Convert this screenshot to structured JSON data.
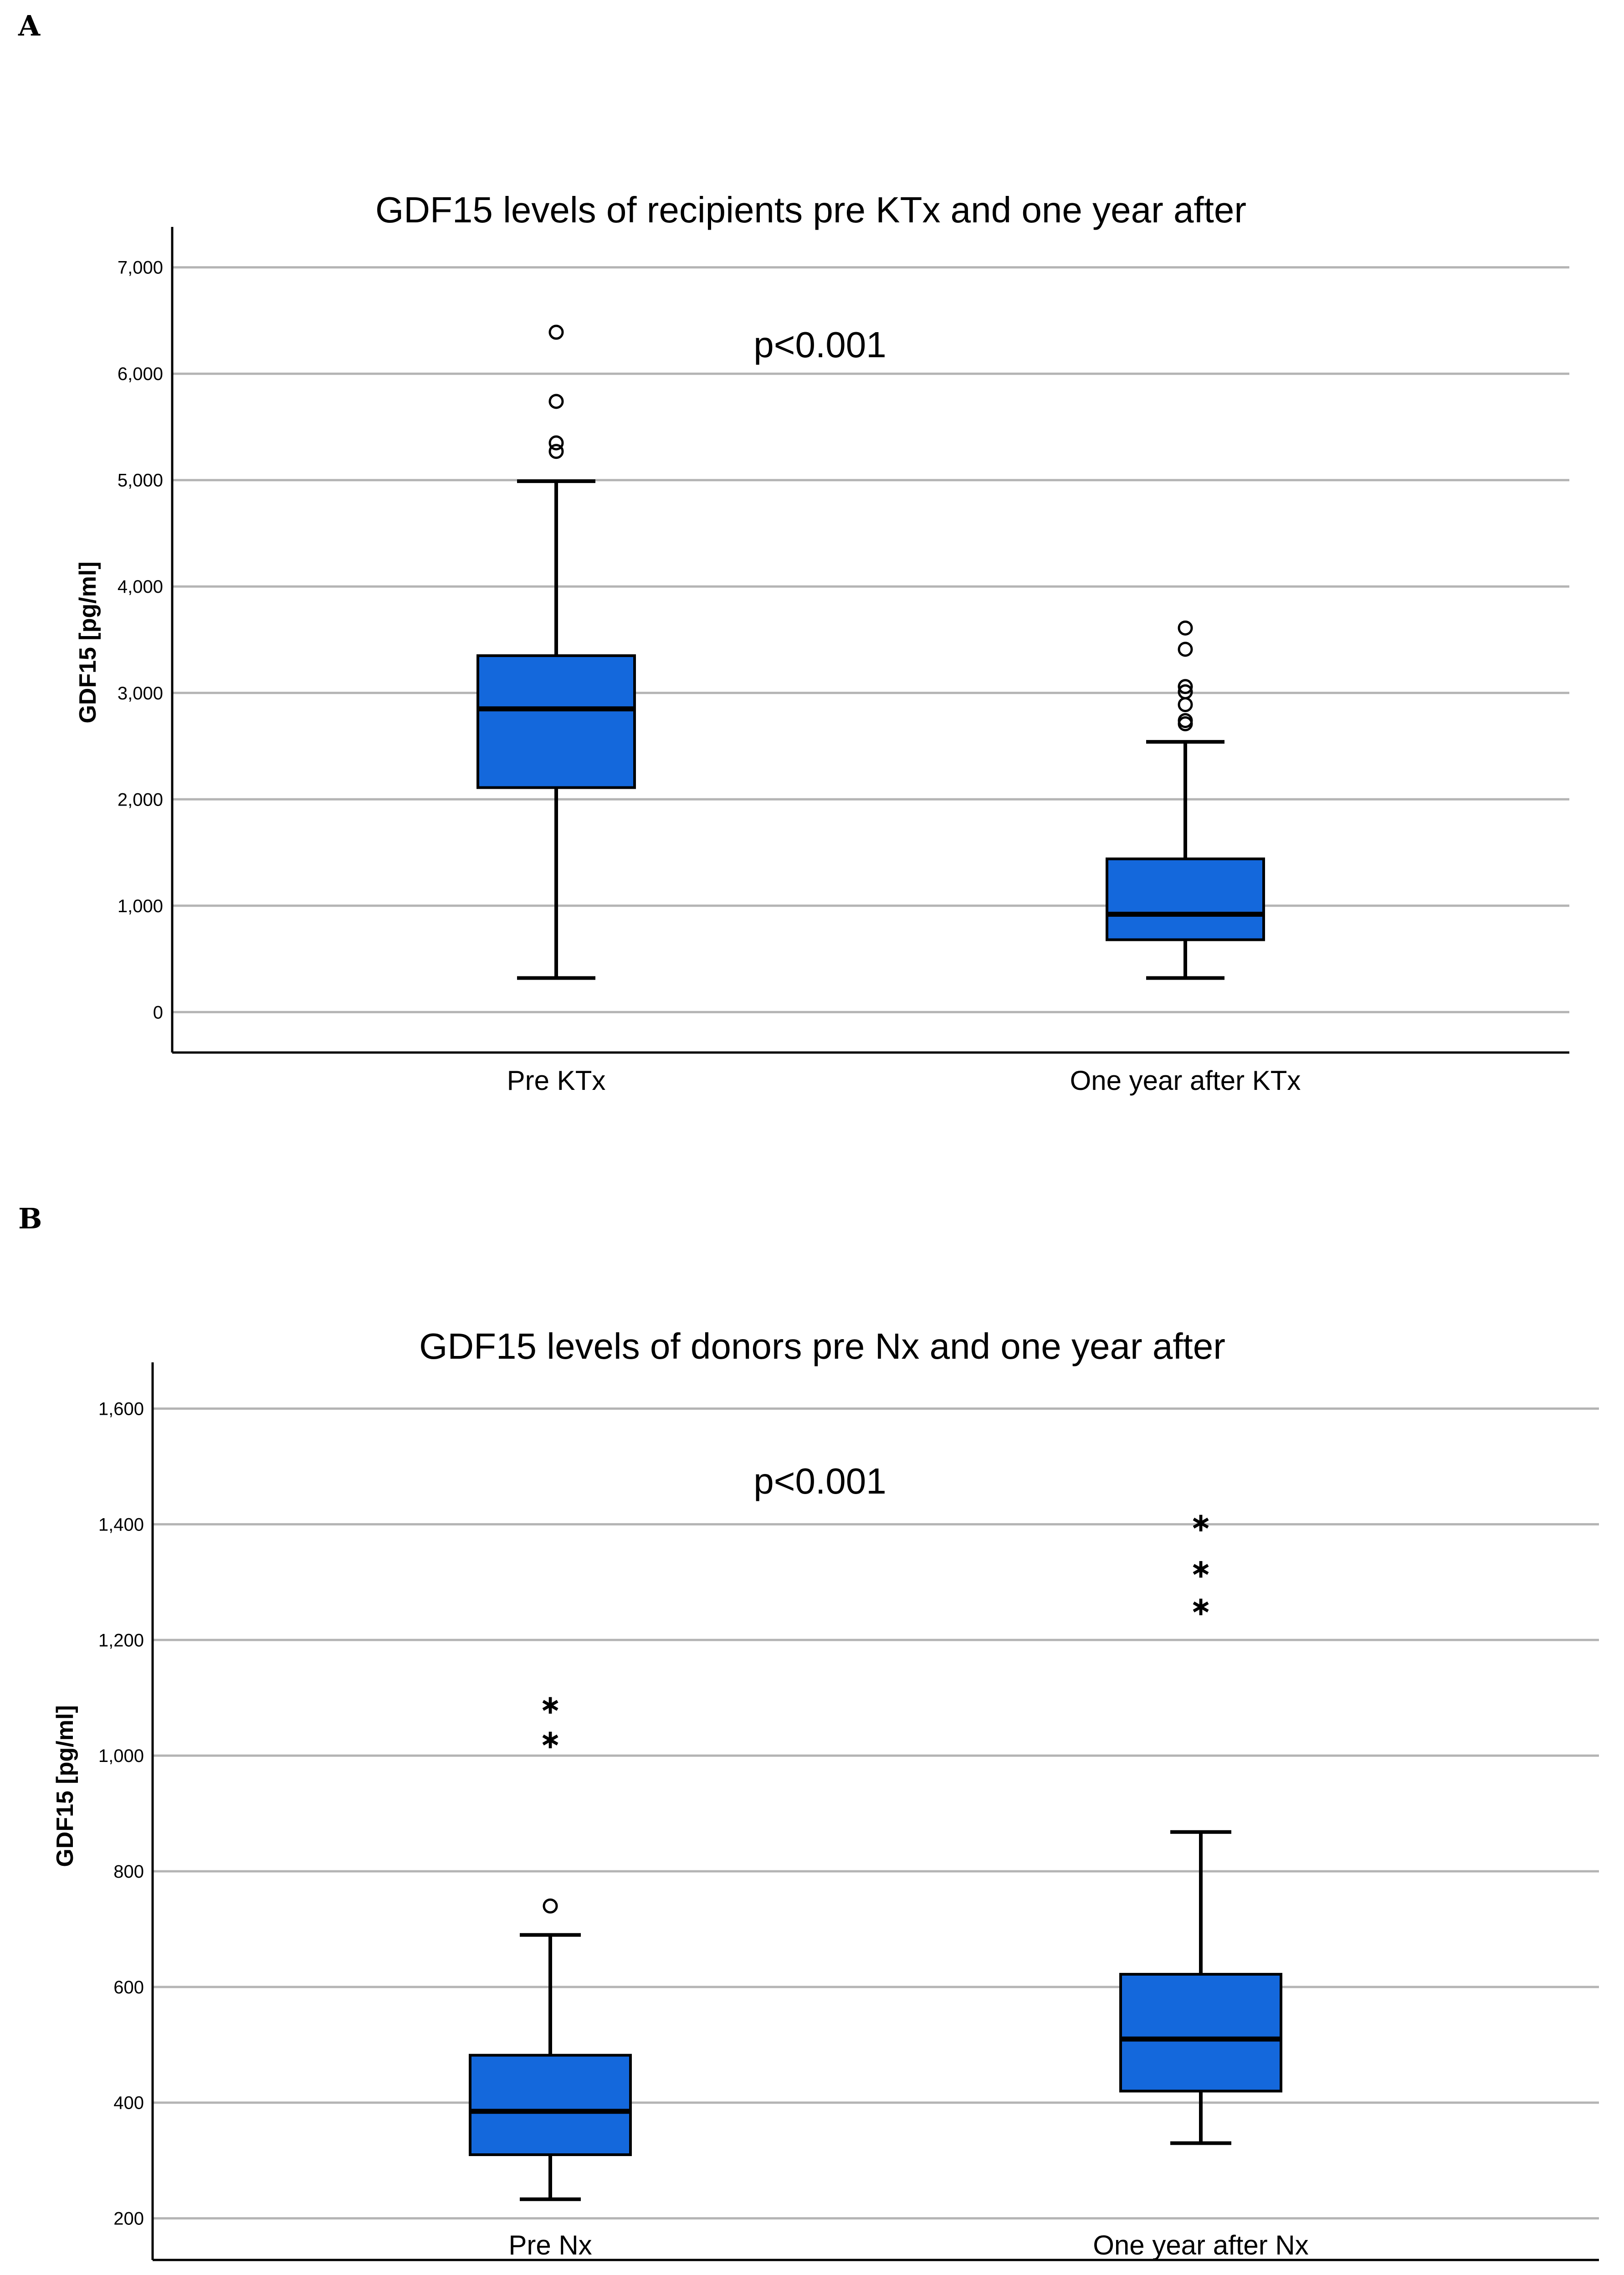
{
  "panel_labels": [
    "A",
    "B"
  ],
  "colors": {
    "box_fill": "#1468DC",
    "stroke": "#000000",
    "grid": "#B4B4B4",
    "background": "#FFFFFF"
  },
  "chart_data": [
    {
      "type": "box",
      "panel": "A",
      "title": "GDF15 levels of recipients pre KTx and one year after",
      "annotation": "p<0.001",
      "xlabel": "",
      "ylabel": "GDF15 [pg/ml]",
      "ylim": [
        -380,
        7380
      ],
      "yticks": [
        0,
        1000,
        2000,
        3000,
        4000,
        5000,
        6000,
        7000
      ],
      "ytick_labels": [
        "0",
        "1,000",
        "2,000",
        "3,000",
        "4,000",
        "5,000",
        "6,000",
        "7,000"
      ],
      "grid": true,
      "categories": [
        "Pre KTx",
        "One year after KTx"
      ],
      "boxes": [
        {
          "category": "Pre KTx",
          "whisker_low": 320,
          "q1": 2110,
          "median": 2850,
          "q3": 3350,
          "whisker_high": 4990,
          "outliers": [
            5270,
            5350,
            5740,
            6390
          ],
          "extremes": []
        },
        {
          "category": "One year after KTx",
          "whisker_low": 320,
          "q1": 680,
          "median": 920,
          "q3": 1440,
          "whisker_high": 2540,
          "outliers": [
            2710,
            2740,
            2890,
            3010,
            3060,
            3410,
            3610
          ],
          "extremes": []
        }
      ]
    },
    {
      "type": "box",
      "panel": "B",
      "title": "GDF15 levels of donors pre Nx and one year after",
      "annotation": "p<0.001",
      "xlabel": "",
      "ylabel": "GDF15 [pg/ml]",
      "ylim": [
        128,
        1680
      ],
      "yticks": [
        200,
        400,
        600,
        800,
        1000,
        1200,
        1400,
        1600
      ],
      "ytick_labels": [
        "200",
        "400",
        "600",
        "800",
        "1,000",
        "1,200",
        "1,400",
        "1,600"
      ],
      "grid": true,
      "categories": [
        "Pre Nx",
        "One year after Nx"
      ],
      "boxes": [
        {
          "category": "Pre Nx",
          "whisker_low": 233,
          "q1": 310,
          "median": 385,
          "q3": 482,
          "whisker_high": 690,
          "outliers": [
            740
          ],
          "extremes": [
            1030,
            1090
          ]
        },
        {
          "category": "One year after Nx",
          "whisker_low": 330,
          "q1": 420,
          "median": 510,
          "q3": 622,
          "whisker_high": 868,
          "outliers": [],
          "extremes": [
            1260,
            1325,
            1405
          ]
        }
      ]
    }
  ]
}
